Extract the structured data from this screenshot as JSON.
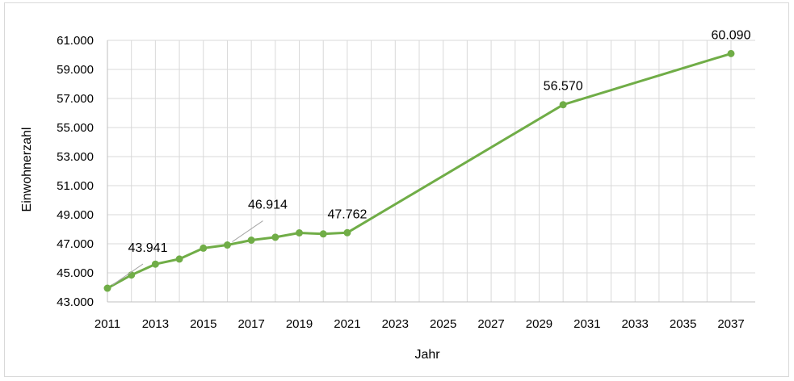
{
  "chart_data": {
    "type": "line",
    "title": "",
    "xlabel": "Jahr",
    "ylabel": "Einwohnerzahl",
    "xlim": [
      2011,
      2037
    ],
    "ylim": [
      43000,
      61000
    ],
    "x_ticks": [
      "2011",
      "2013",
      "2015",
      "2017",
      "2019",
      "2021",
      "2023",
      "2025",
      "2027",
      "2029",
      "2031",
      "2033",
      "2035",
      "2037"
    ],
    "y_ticks": [
      "43.000",
      "45.000",
      "47.000",
      "49.000",
      "51.000",
      "53.000",
      "55.000",
      "57.000",
      "59.000",
      "61.000"
    ],
    "grid": "both",
    "legend": "none",
    "series": [
      {
        "color": "#70ad47",
        "points": [
          {
            "x": 2011,
            "y": 43941
          },
          {
            "x": 2012,
            "y": 44850
          },
          {
            "x": 2013,
            "y": 45600
          },
          {
            "x": 2014,
            "y": 45950
          },
          {
            "x": 2015,
            "y": 46700
          },
          {
            "x": 2016,
            "y": 46914
          },
          {
            "x": 2017,
            "y": 47250
          },
          {
            "x": 2018,
            "y": 47450
          },
          {
            "x": 2019,
            "y": 47750
          },
          {
            "x": 2020,
            "y": 47680
          },
          {
            "x": 2021,
            "y": 47762
          },
          {
            "x": 2030,
            "y": 56570
          },
          {
            "x": 2037,
            "y": 60090
          }
        ]
      }
    ],
    "annotations": [
      {
        "text": "43.941",
        "x": 2011,
        "y": 43941,
        "anchor": "offset-leader"
      },
      {
        "text": "46.914",
        "x": 2016,
        "y": 46914,
        "anchor": "offset-leader"
      },
      {
        "text": "47.762",
        "x": 2021,
        "y": 47762,
        "anchor": "above"
      },
      {
        "text": "56.570",
        "x": 2030,
        "y": 56570,
        "anchor": "above"
      },
      {
        "text": "60.090",
        "x": 2037,
        "y": 60090,
        "anchor": "above"
      }
    ]
  }
}
